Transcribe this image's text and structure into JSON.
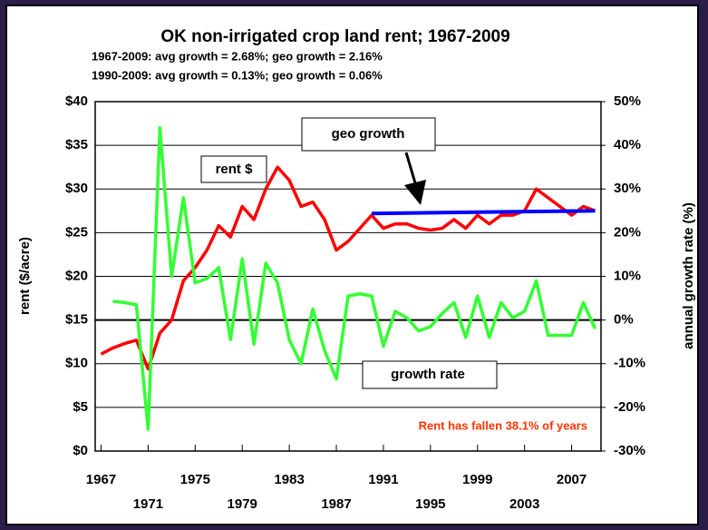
{
  "chart_data": {
    "type": "line",
    "title": "OK non-irrigated crop land rent; 1967-2009",
    "subtitles": [
      "1967-2009:  avg growth = 2.68%;  geo growth = 2.16%",
      "1990-2009:  avg growth = 0.13%;  geo growth = 0.06%"
    ],
    "ylabel": "rent ($/acre)",
    "y2label": "annual growth rate (%)",
    "x": [
      1967,
      1968,
      1969,
      1970,
      1971,
      1972,
      1973,
      1974,
      1975,
      1976,
      1977,
      1978,
      1979,
      1980,
      1981,
      1982,
      1983,
      1984,
      1985,
      1986,
      1987,
      1988,
      1989,
      1990,
      1991,
      1992,
      1993,
      1994,
      1995,
      1996,
      1997,
      1998,
      1999,
      2000,
      2001,
      2002,
      2003,
      2004,
      2005,
      2006,
      2007,
      2008,
      2009
    ],
    "series": [
      {
        "name": "rent $",
        "color": "#ff0000",
        "axis": "y",
        "values": [
          11.1,
          11.8,
          12.3,
          12.7,
          9.4,
          13.5,
          15,
          19.5,
          21,
          23,
          25.8,
          24.5,
          28,
          26.5,
          30,
          32.5,
          31,
          28,
          28.5,
          26.5,
          23,
          24,
          25.5,
          27,
          25.5,
          26,
          26,
          25.5,
          25.3,
          25.5,
          26.5,
          25.5,
          27,
          26,
          27,
          27,
          27.5,
          30,
          29,
          28,
          27,
          28,
          27.5
        ]
      },
      {
        "name": "growth rate",
        "color": "#33ff33",
        "axis": "y2",
        "values": [
          null,
          4.3,
          4,
          3.5,
          -25,
          44,
          10,
          28,
          8.5,
          9.5,
          12,
          -4.5,
          14,
          -5.5,
          13,
          8.5,
          -4.5,
          -10,
          2.5,
          -7,
          -13.5,
          5.5,
          6,
          5.5,
          -6,
          2,
          0.5,
          -2.5,
          -1.5,
          1.5,
          4,
          -4,
          5.5,
          -4,
          4,
          0.5,
          2,
          9,
          -3.5,
          -3.5,
          -3.5,
          4,
          -2
        ]
      },
      {
        "name": "geo growth",
        "color": "#0000ff",
        "axis": "y",
        "x": [
          1990,
          2009
        ],
        "values": [
          27.2,
          27.5
        ]
      }
    ],
    "xlim": [
      1966.5,
      2009.5
    ],
    "xticks": [
      1967,
      1971,
      1975,
      1979,
      1983,
      1987,
      1991,
      1995,
      1999,
      2003,
      2007
    ],
    "ylim": [
      0,
      40
    ],
    "yticks": [
      {
        "value": 0,
        "label": "$0"
      },
      {
        "value": 5,
        "label": "$5"
      },
      {
        "value": 10,
        "label": "$10"
      },
      {
        "value": 15,
        "label": "$15"
      },
      {
        "value": 20,
        "label": "$20"
      },
      {
        "value": 25,
        "label": "$25"
      },
      {
        "value": 30,
        "label": "$30"
      },
      {
        "value": 35,
        "label": "$35"
      },
      {
        "value": 40,
        "label": "$40"
      }
    ],
    "y2lim": [
      -30,
      50
    ],
    "y2ticks": [
      {
        "value": -30,
        "label": "-30%"
      },
      {
        "value": -20,
        "label": "-20%"
      },
      {
        "value": -10,
        "label": "-10%"
      },
      {
        "value": 0,
        "label": "0%"
      },
      {
        "value": 10,
        "label": "10%"
      },
      {
        "value": 20,
        "label": "20%"
      },
      {
        "value": 30,
        "label": "30%"
      },
      {
        "value": 40,
        "label": "40%"
      },
      {
        "value": 50,
        "label": "50%"
      }
    ],
    "y2_reference": 0,
    "note": "Rent has fallen 38.1% of years"
  }
}
